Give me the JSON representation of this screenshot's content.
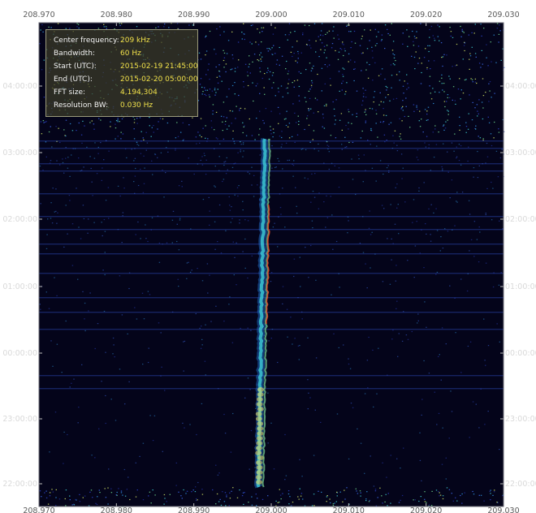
{
  "info_panel": {
    "rows": [
      {
        "label": "Center frequency:",
        "value": "209 kHz"
      },
      {
        "label": "Bandwidth:",
        "value": "60 Hz"
      },
      {
        "label": "Start (UTC):",
        "value": "2015-02-19 21:45:00"
      },
      {
        "label": "End (UTC):",
        "value": "2015-02-20 05:00:00"
      },
      {
        "label": "FFT size:",
        "value": "4,194,304"
      },
      {
        "label": "Resolution BW:",
        "value": "0.030 Hz"
      }
    ]
  },
  "axes": {
    "freq_ticks": [
      "208.970",
      "208.980",
      "208.990",
      "209.000",
      "209.010",
      "209.020",
      "209.030"
    ],
    "time_ticks": [
      "04:00:00",
      "03:00:00",
      "02:00:00",
      "01:00:00",
      "00:00:00",
      "23:00:00",
      "22:00:00"
    ]
  },
  "colors": {
    "background": "#04041a",
    "axis_text": "#d9d9d9",
    "panel_value": "#f0e04a"
  }
}
